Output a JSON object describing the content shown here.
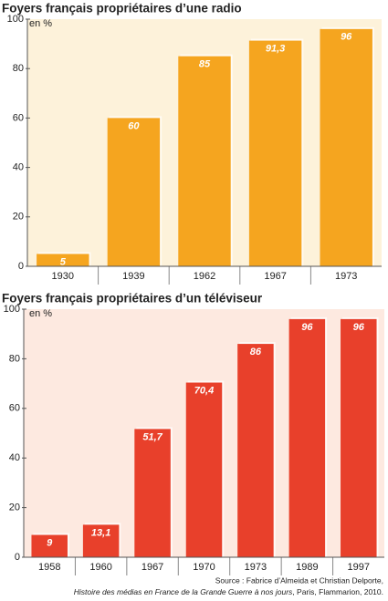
{
  "chart_data": [
    {
      "type": "bar",
      "title": "Foyers français propriétaires d’une radio",
      "y_label": "en %",
      "categories": [
        "1930",
        "1939",
        "1962",
        "1967",
        "1973"
      ],
      "values": [
        5,
        60,
        85,
        91.3,
        96
      ],
      "value_labels": [
        "5",
        "60",
        "85",
        "91,3",
        "96"
      ],
      "color": "#f5a51f",
      "ylim": [
        0,
        100
      ],
      "yticks": [
        0,
        20,
        40,
        60,
        80,
        100
      ],
      "grid": false
    },
    {
      "type": "bar",
      "title": "Foyers français propriétaires d’un téléviseur",
      "y_label": "en %",
      "categories": [
        "1958",
        "1960",
        "1967",
        "1970",
        "1973",
        "1989",
        "1997"
      ],
      "values": [
        9,
        13.1,
        51.7,
        70.4,
        86,
        96,
        96
      ],
      "value_labels": [
        "9",
        "13,1",
        "51,7",
        "70,4",
        "86",
        "96",
        "96"
      ],
      "color": "#e8402b",
      "ylim": [
        0,
        100
      ],
      "yticks": [
        0,
        20,
        40,
        60,
        80,
        100
      ],
      "grid": false
    }
  ],
  "source": {
    "line1": "Source : Fabrice d’Almeida et Christian Delporte,",
    "line2_title": "Histoire des médias en France de la Grande Guerre à nos jours",
    "line2_rest": ", Paris, Flammarion, 2010."
  }
}
